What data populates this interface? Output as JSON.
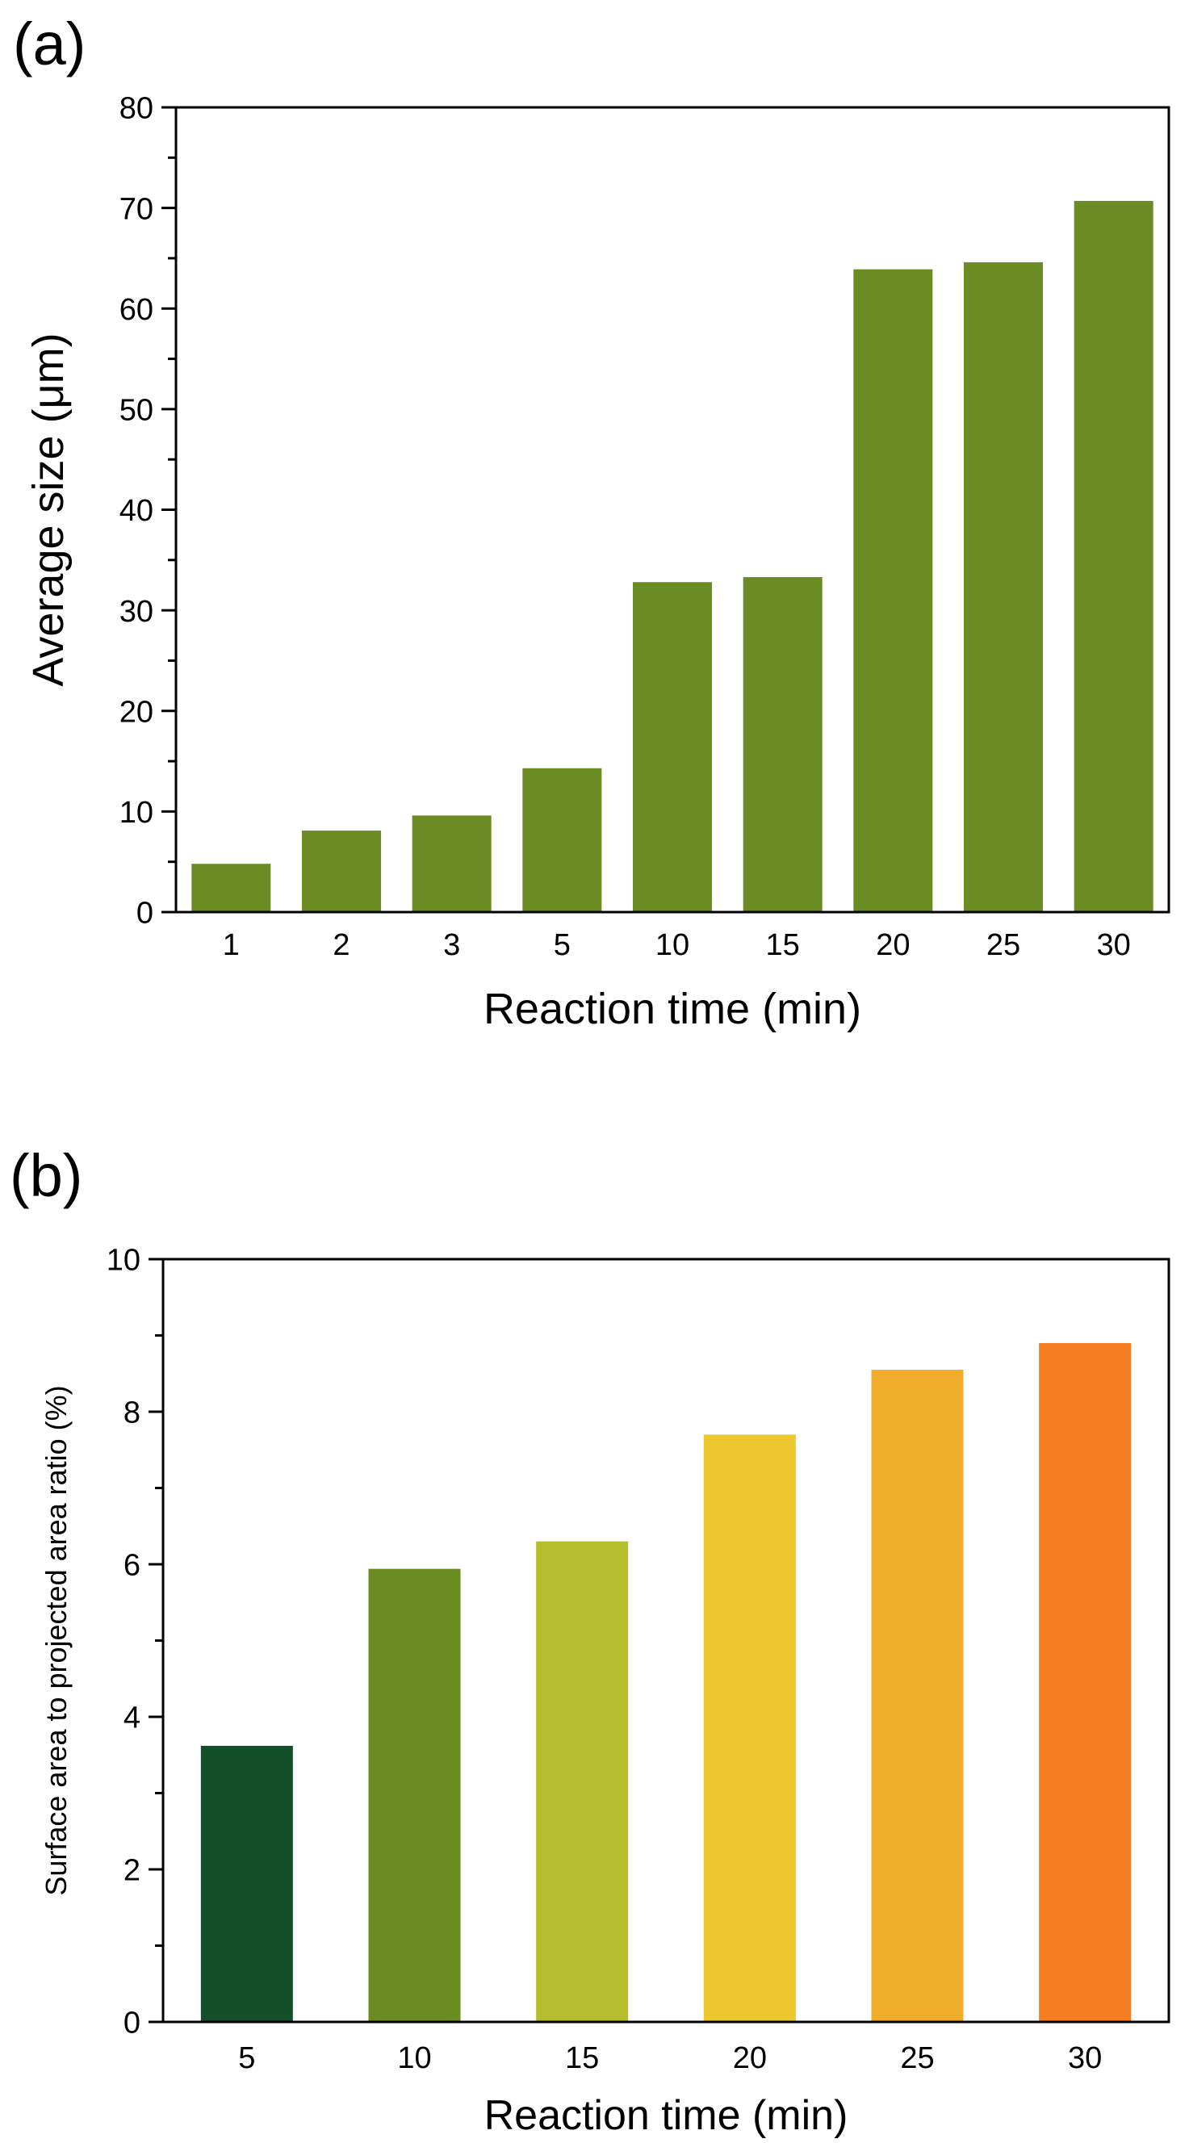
{
  "panels": [
    {
      "label": "(a)"
    },
    {
      "label": "(b)"
    }
  ],
  "chart_data": [
    {
      "type": "bar",
      "panel": "(a)",
      "categories": [
        "1",
        "2",
        "3",
        "5",
        "10",
        "15",
        "20",
        "25",
        "30"
      ],
      "values": [
        4.8,
        8.1,
        9.6,
        14.3,
        32.8,
        33.3,
        63.9,
        64.6,
        70.7
      ],
      "colors": [
        "#6b8c23",
        "#6b8c23",
        "#6b8c23",
        "#6b8c23",
        "#6b8c23",
        "#6b8c23",
        "#6b8c23",
        "#6b8c23",
        "#6b8c23"
      ],
      "xlabel": "Reaction time (min)",
      "ylabel": "Average size (μm)",
      "ylim": [
        0,
        80
      ],
      "yticks": [
        "0",
        "10",
        "20",
        "30",
        "40",
        "50",
        "60",
        "70",
        "80"
      ],
      "grid": false,
      "legend": "none"
    },
    {
      "type": "bar",
      "panel": "(b)",
      "categories": [
        "5",
        "10",
        "15",
        "20",
        "25",
        "30"
      ],
      "values": [
        3.62,
        5.94,
        6.3,
        7.7,
        8.55,
        8.9
      ],
      "colors": [
        "#13502a",
        "#6b8c23",
        "#b5bd2c",
        "#ecc72d",
        "#f0ad2b",
        "#f57e22"
      ],
      "xlabel": "Reaction time (min)",
      "ylabel": "Surface area to projected area ratio (%)",
      "ylim": [
        0,
        10
      ],
      "yticks": [
        "0",
        "2",
        "4",
        "6",
        "8",
        "10"
      ],
      "grid": false,
      "legend": "none"
    }
  ]
}
